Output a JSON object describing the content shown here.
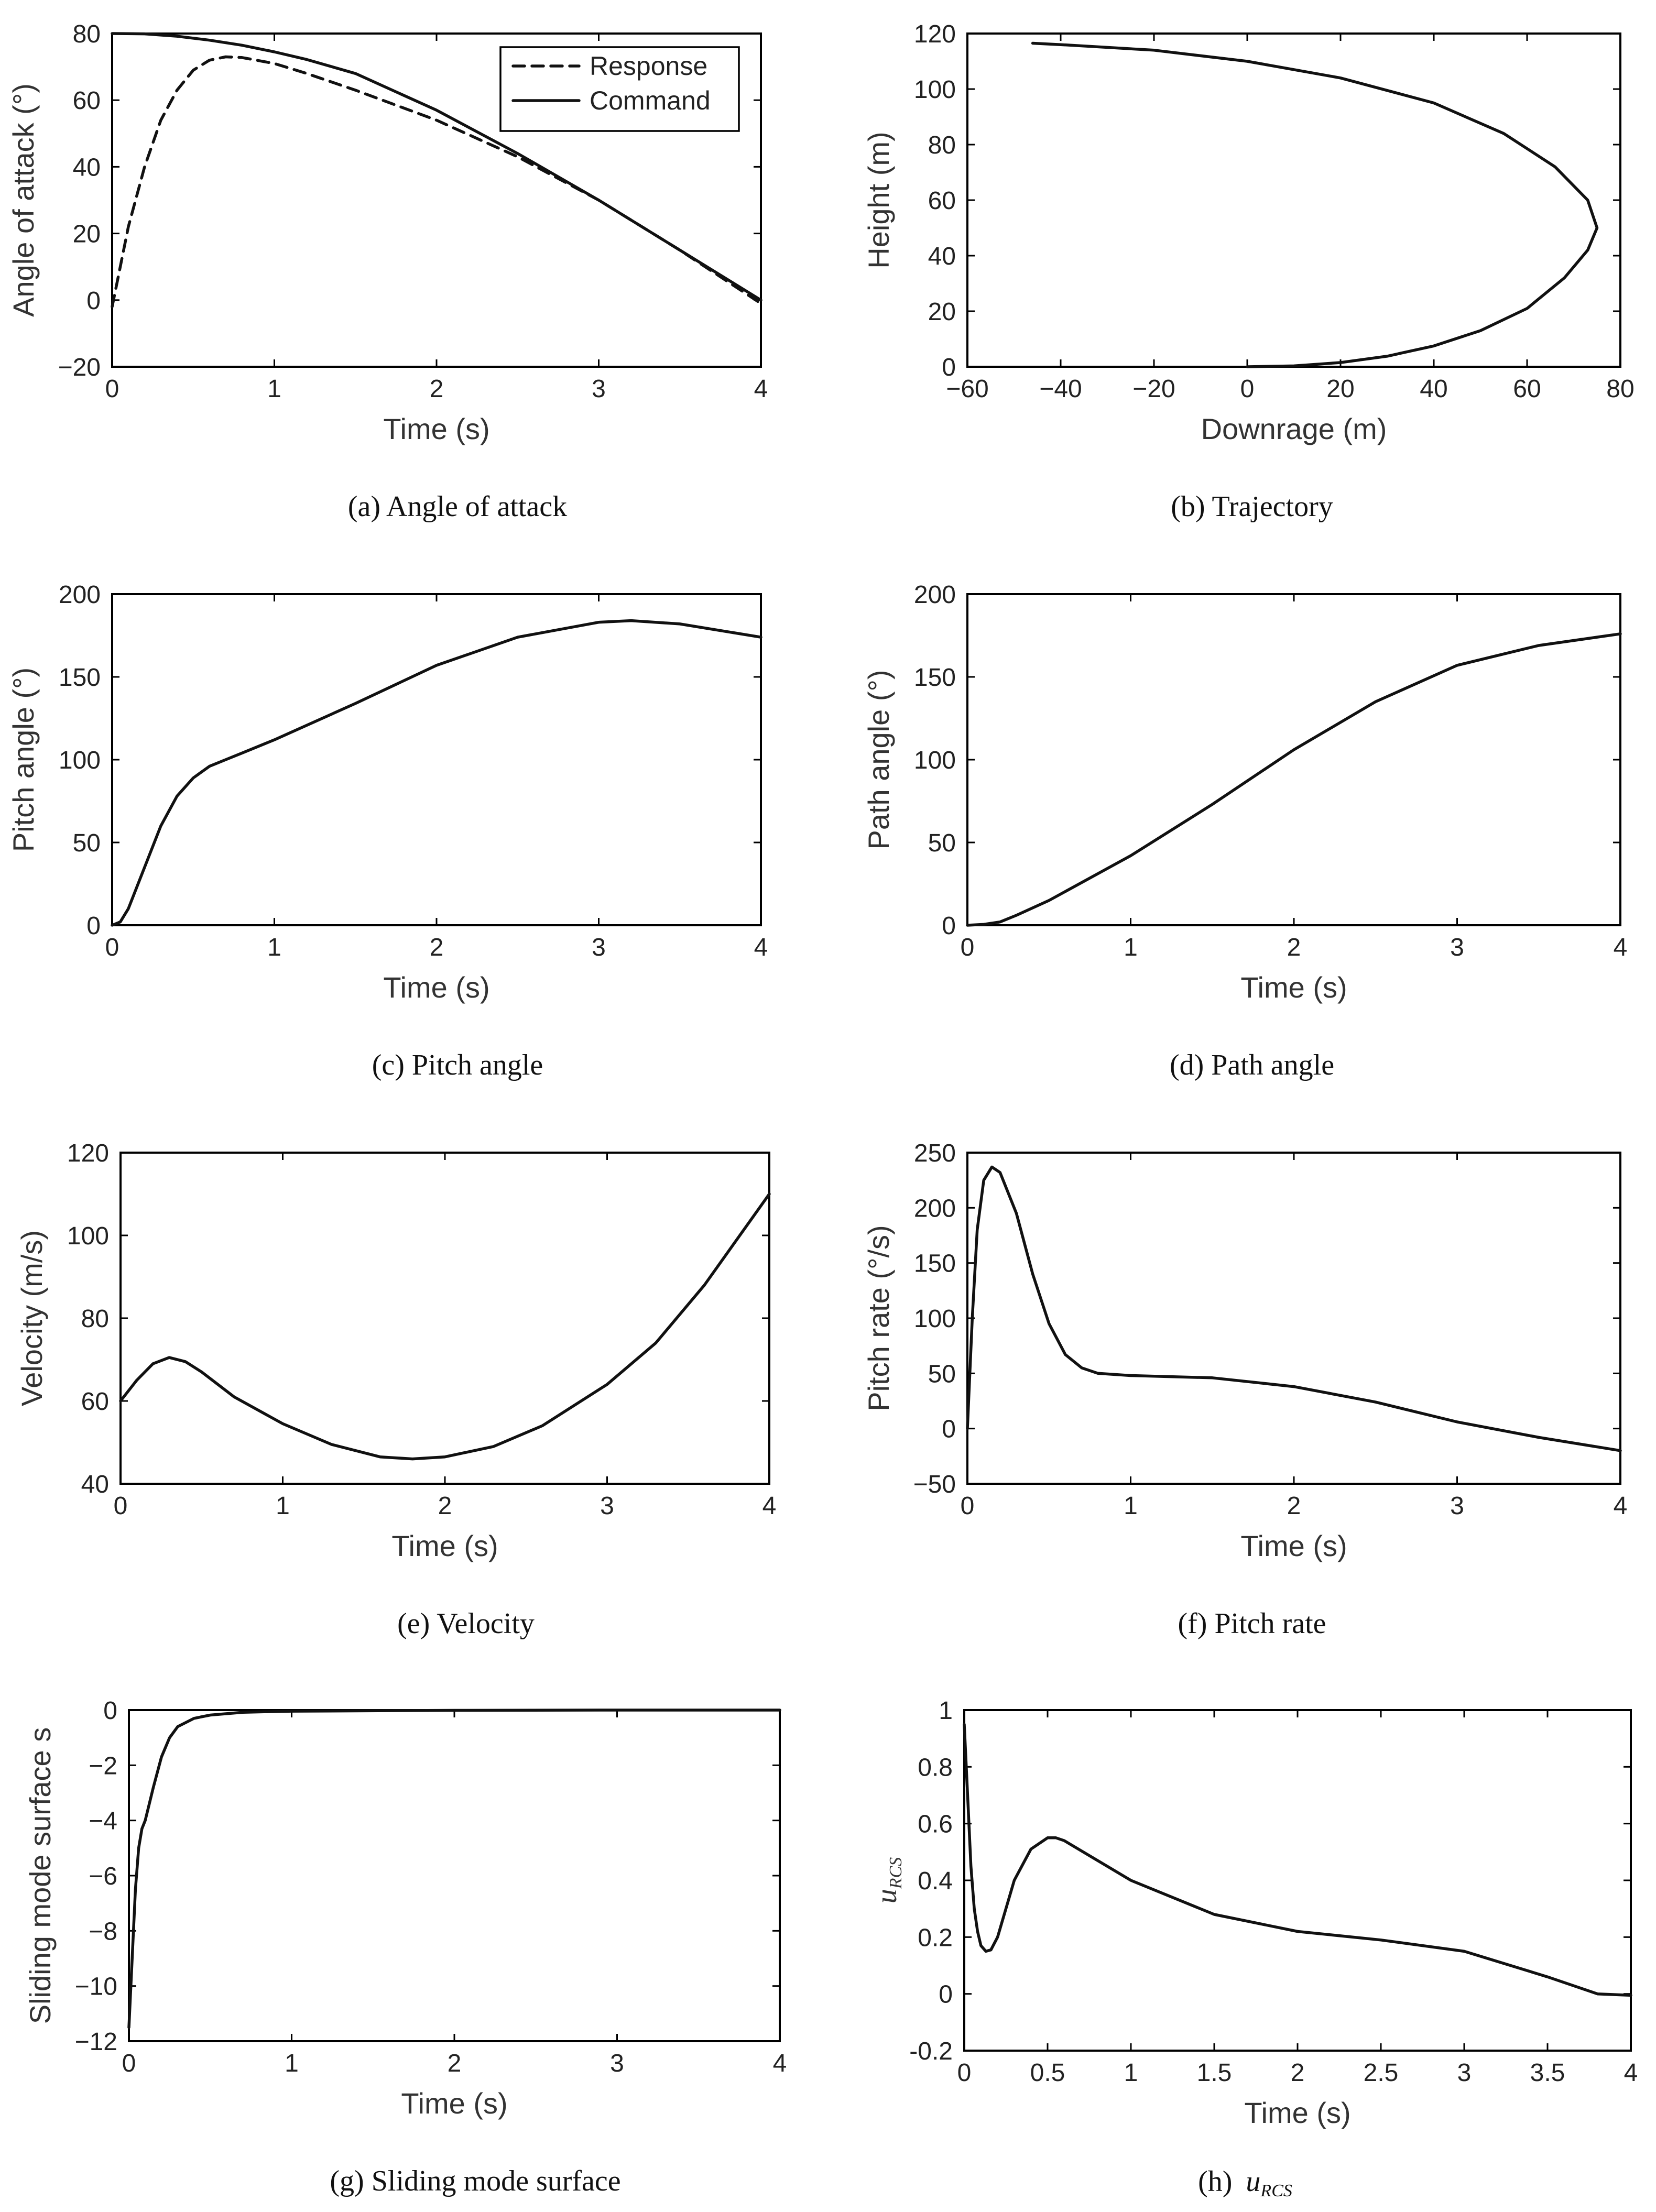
{
  "chart_data": [
    {
      "id": "a",
      "type": "line",
      "caption": "(a) Angle of attack",
      "xlabel": "Time (s)",
      "ylabel": "Angle of attack (°)",
      "xlim": [
        0,
        4
      ],
      "ylim": [
        -20,
        80
      ],
      "xticks": [
        0,
        1,
        2,
        3,
        4
      ],
      "xtick_labels": [
        "0",
        "1",
        "2",
        "3",
        "4"
      ],
      "yticks": [
        -20,
        0,
        20,
        40,
        60,
        80
      ],
      "ytick_labels": [
        "−20",
        "0",
        "20",
        "40",
        "60",
        "80"
      ],
      "legend": {
        "position": "top-right",
        "entries": [
          {
            "label": "Response",
            "style": "dashed"
          },
          {
            "label": "Command",
            "style": "solid"
          }
        ]
      },
      "series": [
        {
          "name": "Response",
          "style": "dashed",
          "x": [
            0,
            0.05,
            0.1,
            0.2,
            0.3,
            0.4,
            0.5,
            0.6,
            0.7,
            0.8,
            1.0,
            1.2,
            1.5,
            2.0,
            2.5,
            3.0,
            3.5,
            4.0
          ],
          "y": [
            -2,
            10,
            22,
            40,
            54,
            63,
            69,
            72,
            73,
            72.8,
            71,
            68,
            63,
            54,
            43,
            30,
            15,
            -1
          ]
        },
        {
          "name": "Command",
          "style": "solid",
          "x": [
            0,
            0.2,
            0.4,
            0.6,
            0.8,
            1.0,
            1.2,
            1.5,
            2.0,
            2.5,
            3.0,
            3.5,
            4.0
          ],
          "y": [
            80,
            79.9,
            79.2,
            78,
            76.5,
            74.5,
            72.2,
            68,
            57,
            44,
            30,
            15,
            0
          ]
        }
      ]
    },
    {
      "id": "b",
      "type": "line",
      "caption": "(b) Trajectory",
      "xlabel": "Downrage (m)",
      "ylabel": "Height (m)",
      "xlim": [
        -60,
        80
      ],
      "ylim": [
        0,
        120
      ],
      "xticks": [
        -60,
        -40,
        -20,
        0,
        20,
        40,
        60,
        80
      ],
      "xtick_labels": [
        "−60",
        "−40",
        "−20",
        "0",
        "20",
        "40",
        "60",
        "80"
      ],
      "yticks": [
        0,
        20,
        40,
        60,
        80,
        100,
        120
      ],
      "ytick_labels": [
        "0",
        "20",
        "40",
        "60",
        "80",
        "100",
        "120"
      ],
      "series": [
        {
          "name": "Trajectory",
          "style": "solid",
          "x": [
            0,
            10,
            20,
            30,
            40,
            50,
            60,
            68,
            73,
            75,
            73,
            66,
            55,
            40,
            20,
            0,
            -20,
            -40,
            -46
          ],
          "y": [
            0,
            0.3,
            1.5,
            3.8,
            7.5,
            13,
            21,
            32,
            42,
            50,
            60,
            72,
            84,
            95,
            104,
            110,
            114,
            116,
            116.5
          ]
        }
      ]
    },
    {
      "id": "c",
      "type": "line",
      "caption": "(c) Pitch angle",
      "xlabel": "Time (s)",
      "ylabel": "Pitch angle (°)",
      "xlim": [
        0,
        4
      ],
      "ylim": [
        0,
        200
      ],
      "xticks": [
        0,
        1,
        2,
        3,
        4
      ],
      "xtick_labels": [
        "0",
        "1",
        "2",
        "3",
        "4"
      ],
      "yticks": [
        0,
        50,
        100,
        150,
        200
      ],
      "ytick_labels": [
        "0",
        "50",
        "100",
        "150",
        "200"
      ],
      "series": [
        {
          "name": "Pitch angle",
          "style": "solid",
          "x": [
            0,
            0.05,
            0.1,
            0.2,
            0.3,
            0.4,
            0.5,
            0.6,
            0.7,
            0.8,
            1.0,
            1.5,
            2.0,
            2.5,
            3.0,
            3.2,
            3.5,
            4.0
          ],
          "y": [
            0,
            2,
            10,
            35,
            60,
            78,
            89,
            96,
            100,
            104,
            112,
            134,
            157,
            174,
            183,
            184,
            182,
            174
          ]
        }
      ]
    },
    {
      "id": "d",
      "type": "line",
      "caption": "(d) Path angle",
      "xlabel": "Time (s)",
      "ylabel": "Path angle (°)",
      "xlim": [
        0,
        4
      ],
      "ylim": [
        0,
        200
      ],
      "xticks": [
        0,
        1,
        2,
        3,
        4
      ],
      "xtick_labels": [
        "0",
        "1",
        "2",
        "3",
        "4"
      ],
      "yticks": [
        0,
        50,
        100,
        150,
        200
      ],
      "ytick_labels": [
        "0",
        "50",
        "100",
        "150",
        "200"
      ],
      "series": [
        {
          "name": "Path angle",
          "style": "solid",
          "x": [
            0,
            0.1,
            0.2,
            0.3,
            0.5,
            1.0,
            1.5,
            2.0,
            2.5,
            3.0,
            3.5,
            4.0
          ],
          "y": [
            0,
            0.5,
            2,
            6,
            15,
            42,
            73,
            106,
            135,
            157,
            169,
            176
          ]
        }
      ]
    },
    {
      "id": "e",
      "type": "line",
      "caption": "(e) Velocity",
      "xlabel": "Time (s)",
      "ylabel": "Velocity (m/s)",
      "xlim": [
        0,
        4
      ],
      "ylim": [
        40,
        120
      ],
      "xticks": [
        0,
        1,
        2,
        3,
        4
      ],
      "xtick_labels": [
        "0",
        "1",
        "2",
        "3",
        "4"
      ],
      "yticks": [
        40,
        60,
        80,
        100,
        120
      ],
      "ytick_labels": [
        "40",
        "60",
        "80",
        "100",
        "120"
      ],
      "series": [
        {
          "name": "Velocity",
          "style": "solid",
          "x": [
            0,
            0.1,
            0.2,
            0.3,
            0.4,
            0.5,
            0.7,
            1.0,
            1.3,
            1.6,
            1.8,
            2.0,
            2.3,
            2.6,
            3.0,
            3.3,
            3.6,
            4.0
          ],
          "y": [
            60,
            65,
            69,
            70.5,
            69.5,
            67,
            61,
            54.5,
            49.5,
            46.5,
            46,
            46.5,
            49,
            54,
            64,
            74,
            88,
            110
          ]
        }
      ]
    },
    {
      "id": "f",
      "type": "line",
      "caption": "(f) Pitch rate",
      "xlabel": "Time (s)",
      "ylabel": "Pitch rate (°/s)",
      "xlim": [
        0,
        4
      ],
      "ylim": [
        -50,
        250
      ],
      "xticks": [
        0,
        1,
        2,
        3,
        4
      ],
      "xtick_labels": [
        "0",
        "1",
        "2",
        "3",
        "4"
      ],
      "yticks": [
        -50,
        0,
        50,
        100,
        150,
        200,
        250
      ],
      "ytick_labels": [
        "−50",
        "0",
        "50",
        "100",
        "150",
        "200",
        "250"
      ],
      "series": [
        {
          "name": "Pitch rate",
          "style": "solid",
          "x": [
            0,
            0.03,
            0.06,
            0.1,
            0.15,
            0.2,
            0.3,
            0.4,
            0.5,
            0.6,
            0.7,
            0.8,
            1.0,
            1.5,
            2.0,
            2.5,
            3.0,
            3.5,
            4.0
          ],
          "y": [
            0,
            100,
            180,
            225,
            237,
            232,
            195,
            140,
            95,
            67,
            55,
            50,
            48,
            46,
            38,
            24,
            6,
            -8,
            -20
          ]
        }
      ]
    },
    {
      "id": "g",
      "type": "line",
      "caption": "(g) Sliding mode surface",
      "xlabel": "Time (s)",
      "ylabel": "Sliding mode surface s",
      "xlim": [
        0,
        4
      ],
      "ylim": [
        -12,
        0
      ],
      "xticks": [
        0,
        1,
        2,
        3,
        4
      ],
      "xtick_labels": [
        "0",
        "1",
        "2",
        "3",
        "4"
      ],
      "yticks": [
        -12,
        -10,
        -8,
        -6,
        -4,
        -2,
        0
      ],
      "ytick_labels": [
        "−12",
        "−10",
        "−8",
        "−6",
        "−4",
        "−2",
        "0"
      ],
      "series": [
        {
          "name": "Sliding mode surface",
          "style": "solid",
          "x": [
            0,
            0.02,
            0.04,
            0.06,
            0.08,
            0.1,
            0.15,
            0.2,
            0.25,
            0.3,
            0.4,
            0.5,
            0.7,
            1.0,
            2.0,
            3.0,
            4.0
          ],
          "y": [
            -11.5,
            -9,
            -6.5,
            -5,
            -4.3,
            -4,
            -2.8,
            -1.7,
            -1.0,
            -0.6,
            -0.3,
            -0.18,
            -0.08,
            -0.04,
            -0.01,
            0,
            0
          ]
        }
      ]
    },
    {
      "id": "h",
      "type": "line",
      "caption": "(h)",
      "caption_symbol": "u",
      "caption_subscript": "RCS",
      "xlabel": "Time (s)",
      "ylabel": "u",
      "ylabel_subscript": "RCS",
      "xlim": [
        0,
        4
      ],
      "ylim": [
        -0.2,
        1
      ],
      "xticks": [
        0,
        0.5,
        1,
        1.5,
        2,
        2.5,
        3,
        3.5,
        4
      ],
      "xtick_labels": [
        "0",
        "0.5",
        "1",
        "1.5",
        "2",
        "2.5",
        "3",
        "3.5",
        "4"
      ],
      "yticks": [
        -0.2,
        0,
        0.2,
        0.4,
        0.6,
        0.8,
        1
      ],
      "ytick_labels": [
        "-0.2",
        "0",
        "0.2",
        "0.4",
        "0.6",
        "0.8",
        "1"
      ],
      "series": [
        {
          "name": "uRCS",
          "style": "solid",
          "x": [
            0,
            0.02,
            0.04,
            0.06,
            0.08,
            0.1,
            0.13,
            0.16,
            0.2,
            0.25,
            0.3,
            0.4,
            0.5,
            0.55,
            0.6,
            0.8,
            1.0,
            1.5,
            2.0,
            2.5,
            3.0,
            3.5,
            3.8,
            4.0
          ],
          "y": [
            0.95,
            0.7,
            0.45,
            0.3,
            0.22,
            0.17,
            0.15,
            0.155,
            0.2,
            0.3,
            0.4,
            0.51,
            0.55,
            0.55,
            0.54,
            0.47,
            0.4,
            0.28,
            0.22,
            0.19,
            0.15,
            0.06,
            0.0,
            -0.005
          ]
        }
      ]
    }
  ]
}
